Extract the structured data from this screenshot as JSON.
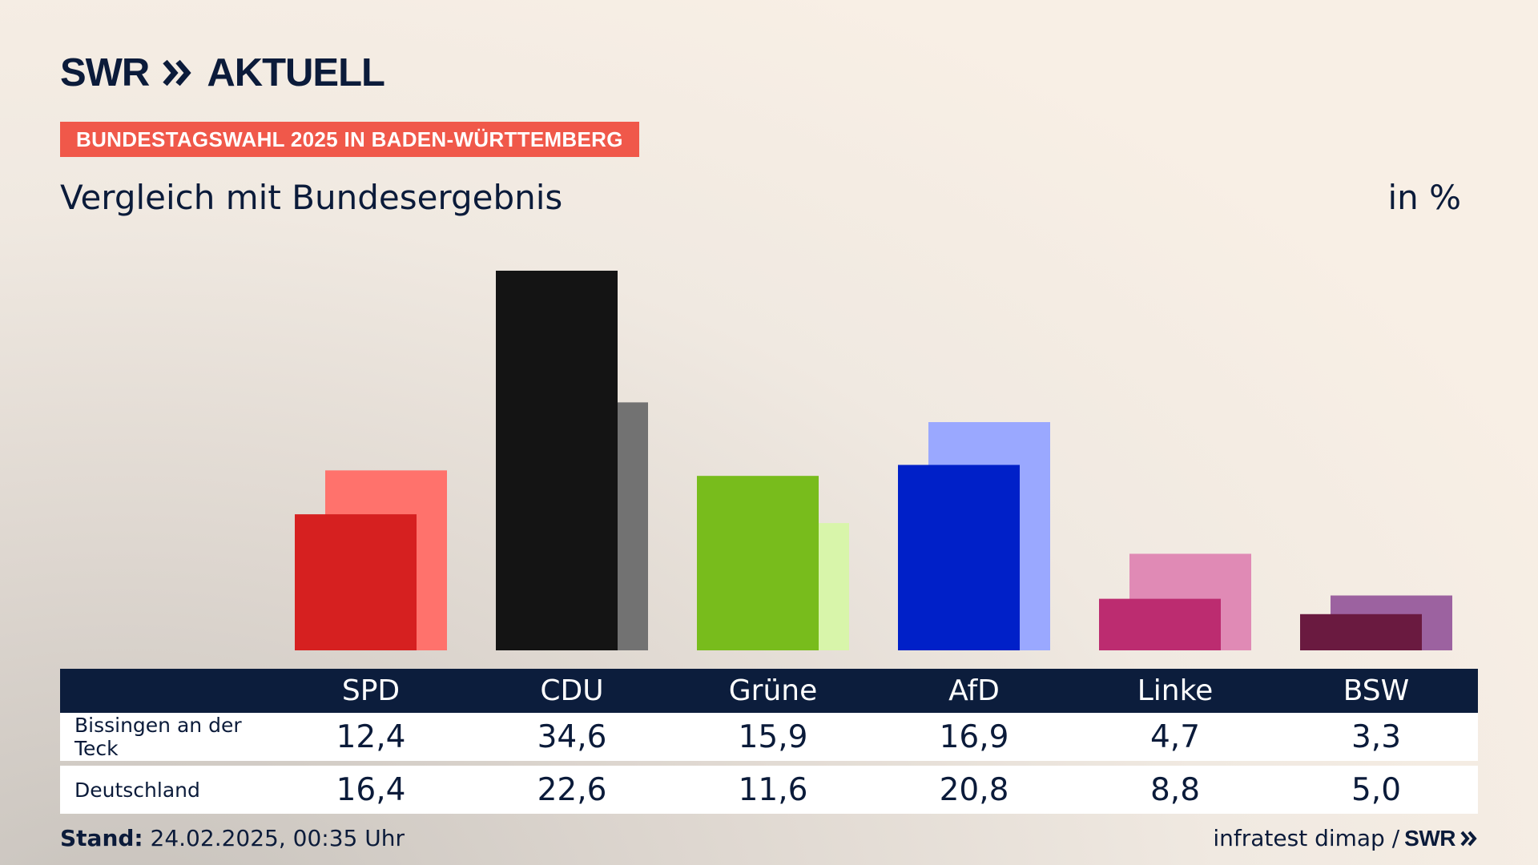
{
  "header": {
    "logo_text_left": "SWR",
    "logo_text_right": "AKTUELL",
    "badge": "BUNDESTAGSWAHL 2025 IN BADEN-WÜRTTEMBERG",
    "subtitle": "Vergleich mit Bundesergebnis",
    "unit": "in %"
  },
  "chart_data": {
    "type": "bar",
    "categories": [
      "SPD",
      "CDU",
      "Grüne",
      "AfD",
      "Linke",
      "BSW"
    ],
    "series": [
      {
        "name": "Bissingen an der Teck",
        "values": [
          12.4,
          34.6,
          15.9,
          16.9,
          4.7,
          3.3
        ]
      },
      {
        "name": "Deutschland",
        "values": [
          16.4,
          22.6,
          11.6,
          20.8,
          8.8,
          5.0
        ]
      }
    ],
    "value_labels": [
      [
        "12,4",
        "34,6",
        "15,9",
        "16,9",
        "4,7",
        "3,3"
      ],
      [
        "16,4",
        "22,6",
        "11,6",
        "20,8",
        "8,8",
        "5,0"
      ]
    ],
    "colors": {
      "local": [
        "#d62020",
        "#141414",
        "#78bc1c",
        "#0020c8",
        "#bc2c70",
        "#6a1a40"
      ],
      "national": [
        "#ff726c",
        "#727272",
        "#d8f5aa",
        "#9aa8ff",
        "#e08ab5",
        "#9c62a0"
      ]
    },
    "ylim": [
      0,
      35
    ],
    "grid": false,
    "legend": "none"
  },
  "footer": {
    "stand_label": "Stand:",
    "stand_value": "24.02.2025, 00:35 Uhr",
    "source": "infratest dimap /",
    "source_logo": "SWR"
  }
}
